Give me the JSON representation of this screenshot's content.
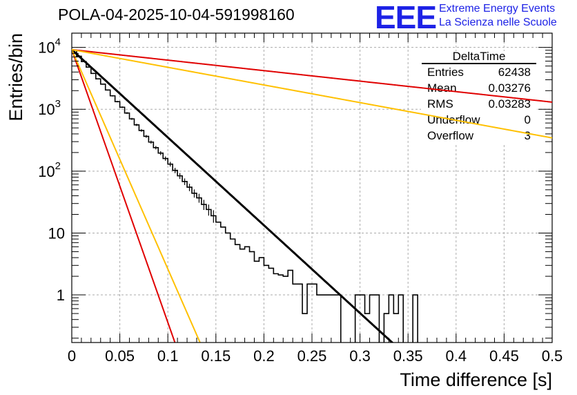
{
  "header": {
    "title": "POLA-04-2025-10-04-591998160",
    "logo": "EEE",
    "logo_line1": "Extreme Energy Events",
    "logo_line2": "La Scienza nelle Scuole"
  },
  "stats": {
    "name": "DeltaTime",
    "rows": [
      {
        "label": "Entries",
        "value": "62438"
      },
      {
        "label": "Mean",
        "value": "0.03276"
      },
      {
        "label": "RMS",
        "value": "0.03283"
      },
      {
        "label": "Underflow",
        "value": "0"
      },
      {
        "label": "Overflow",
        "value": "3"
      }
    ]
  },
  "colors": {
    "histogram": "#000000",
    "fit": "#000000",
    "red_line": "#e00000",
    "yellow_line": "#ffc000",
    "grid": "#aaaaaa",
    "logo": "#1d22e6"
  },
  "chart_data": {
    "type": "histogram",
    "title": "POLA-04-2025-10-04-591998160",
    "xlabel": "Time difference [s]",
    "ylabel": "Entries/bin",
    "xlim": [
      0,
      0.5
    ],
    "ylim": [
      0.17,
      17000
    ],
    "yscale": "log",
    "xticks": [
      0,
      0.05,
      0.1,
      0.15,
      0.2,
      0.25,
      0.3,
      0.35,
      0.4,
      0.45,
      0.5
    ],
    "xtick_labels": [
      "0",
      "0.05",
      "0.1",
      "0.15",
      "0.2",
      "0.25",
      "0.3",
      "0.35",
      "0.4",
      "0.45",
      "0.5"
    ],
    "yticks": [
      {
        "value": 1,
        "base": "1",
        "exp": ""
      },
      {
        "value": 10,
        "base": "10",
        "exp": ""
      },
      {
        "value": 100,
        "base": "10",
        "exp": "2"
      },
      {
        "value": 1000,
        "base": "10",
        "exp": "3"
      },
      {
        "value": 10000,
        "base": "10",
        "exp": "4"
      }
    ],
    "grid": true,
    "bin_width": 0.005,
    "histogram": [
      [
        0.0,
        9000
      ],
      [
        0.005,
        7200
      ],
      [
        0.01,
        5900
      ],
      [
        0.015,
        4800
      ],
      [
        0.02,
        3800
      ],
      [
        0.025,
        3100
      ],
      [
        0.03,
        2550
      ],
      [
        0.035,
        2050
      ],
      [
        0.04,
        1650
      ],
      [
        0.045,
        1330
      ],
      [
        0.05,
        1080
      ],
      [
        0.055,
        870
      ],
      [
        0.06,
        700
      ],
      [
        0.065,
        560
      ],
      [
        0.07,
        455
      ],
      [
        0.075,
        365
      ],
      [
        0.08,
        295
      ],
      [
        0.085,
        240
      ],
      [
        0.09,
        196
      ],
      [
        0.095,
        160
      ],
      [
        0.1,
        130
      ],
      [
        0.105,
        103
      ],
      [
        0.11,
        84
      ],
      [
        0.115,
        68
      ],
      [
        0.12,
        55
      ],
      [
        0.125,
        44
      ],
      [
        0.13,
        37
      ],
      [
        0.135,
        29
      ],
      [
        0.14,
        24
      ],
      [
        0.145,
        19
      ],
      [
        0.15,
        15
      ],
      [
        0.155,
        12.5
      ],
      [
        0.16,
        10
      ],
      [
        0.165,
        8
      ],
      [
        0.17,
        6.5
      ],
      [
        0.175,
        5.5
      ],
      [
        0.18,
        6
      ],
      [
        0.185,
        5
      ],
      [
        0.19,
        3.5
      ],
      [
        0.195,
        4
      ],
      [
        0.2,
        3
      ],
      [
        0.205,
        2.7
      ],
      [
        0.21,
        2.2
      ],
      [
        0.215,
        2.1
      ],
      [
        0.22,
        2
      ],
      [
        0.225,
        2.5
      ],
      [
        0.23,
        1.5
      ],
      [
        0.235,
        1.5
      ],
      [
        0.24,
        0.5
      ],
      [
        0.245,
        1.5
      ],
      [
        0.25,
        1.5
      ],
      [
        0.255,
        1
      ],
      [
        0.26,
        1
      ],
      [
        0.265,
        1
      ],
      [
        0.27,
        1
      ],
      [
        0.275,
        1
      ],
      [
        0.28,
        0
      ],
      [
        0.285,
        0
      ],
      [
        0.29,
        0
      ],
      [
        0.295,
        1
      ],
      [
        0.3,
        1
      ],
      [
        0.305,
        0.5
      ],
      [
        0.31,
        1
      ],
      [
        0.315,
        1
      ],
      [
        0.32,
        0
      ],
      [
        0.325,
        0.5
      ],
      [
        0.33,
        1
      ],
      [
        0.335,
        0.5
      ],
      [
        0.34,
        1
      ],
      [
        0.345,
        0
      ],
      [
        0.35,
        0
      ],
      [
        0.355,
        1
      ],
      [
        0.36,
        0
      ]
    ],
    "series": [
      {
        "name": "exponential fit",
        "color": "#000000",
        "a": 9200,
        "tau": 0.0306,
        "xmax": 0.36
      },
      {
        "name": "red steep",
        "color": "#e00000",
        "a": 9200,
        "tau": 0.00985,
        "xmax": 0.5
      },
      {
        "name": "yellow steep",
        "color": "#ffc000",
        "a": 9200,
        "tau": 0.01225,
        "xmax": 0.5
      },
      {
        "name": "red shallow",
        "color": "#e00000",
        "a": 9200,
        "tau": 0.256,
        "xmax": 0.5
      },
      {
        "name": "yellow shallow",
        "color": "#ffc000",
        "a": 9200,
        "tau": 0.1522,
        "xmax": 0.5
      }
    ]
  }
}
